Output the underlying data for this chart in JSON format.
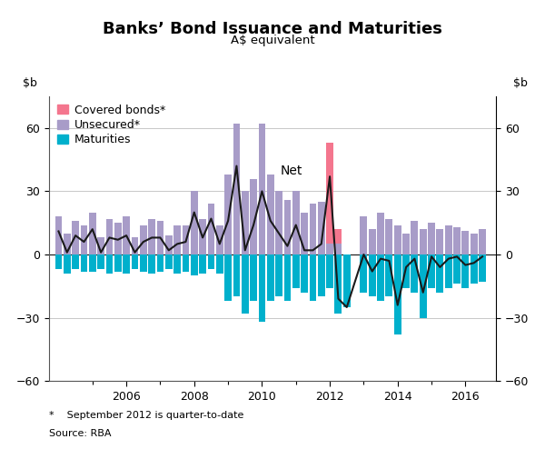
{
  "title": "Banks’ Bond Issuance and Maturities",
  "subtitle": "A$ equivalent",
  "footnote": "*    September 2012 is quarter-to-date",
  "source": "Source: RBA",
  "net_label": "Net",
  "ylim": [
    -60,
    75
  ],
  "yticks": [
    -60,
    -30,
    0,
    30,
    60
  ],
  "background_color": "#ffffff",
  "grid_color": "#c8c8c8",
  "x_values": [
    2004.0,
    2004.25,
    2004.5,
    2004.75,
    2005.0,
    2005.25,
    2005.5,
    2005.75,
    2006.0,
    2006.25,
    2006.5,
    2006.75,
    2007.0,
    2007.25,
    2007.5,
    2007.75,
    2008.0,
    2008.25,
    2008.5,
    2008.75,
    2009.0,
    2009.25,
    2009.5,
    2009.75,
    2010.0,
    2010.25,
    2010.5,
    2010.75,
    2011.0,
    2011.25,
    2011.5,
    2011.75,
    2012.0,
    2012.25,
    2012.5,
    2013.0,
    2013.25,
    2013.5,
    2013.75,
    2014.0,
    2014.25,
    2014.5,
    2014.75,
    2015.0,
    2015.25,
    2015.5,
    2015.75,
    2016.0,
    2016.25,
    2016.5
  ],
  "unsecured": [
    18,
    10,
    16,
    14,
    20,
    8,
    17,
    15,
    18,
    8,
    14,
    17,
    16,
    9,
    14,
    14,
    30,
    17,
    24,
    14,
    38,
    62,
    30,
    36,
    62,
    38,
    30,
    26,
    30,
    20,
    24,
    25,
    5,
    5,
    0,
    18,
    12,
    20,
    17,
    14,
    10,
    16,
    12,
    15,
    12,
    14,
    13,
    11,
    10,
    12
  ],
  "covered": [
    0,
    0,
    0,
    0,
    0,
    0,
    0,
    0,
    0,
    0,
    0,
    0,
    0,
    0,
    0,
    0,
    0,
    0,
    0,
    0,
    0,
    0,
    0,
    0,
    0,
    0,
    0,
    0,
    0,
    0,
    0,
    0,
    48,
    7,
    0,
    0,
    0,
    0,
    0,
    0,
    0,
    0,
    0,
    0,
    0,
    0,
    0,
    0,
    0,
    0
  ],
  "maturities": [
    -7,
    -9,
    -7,
    -8,
    -8,
    -7,
    -9,
    -8,
    -9,
    -7,
    -8,
    -9,
    -8,
    -7,
    -9,
    -8,
    -10,
    -9,
    -7,
    -9,
    -22,
    -20,
    -28,
    -22,
    -32,
    -22,
    -20,
    -22,
    -16,
    -18,
    -22,
    -20,
    -16,
    -28,
    -25,
    -18,
    -20,
    -22,
    -20,
    -38,
    -16,
    -18,
    -30,
    -16,
    -18,
    -16,
    -14,
    -16,
    -14,
    -13
  ],
  "net": [
    11,
    1,
    9,
    6,
    12,
    1,
    8,
    7,
    9,
    1,
    6,
    8,
    8,
    2,
    5,
    6,
    20,
    8,
    17,
    5,
    16,
    42,
    2,
    14,
    30,
    16,
    10,
    4,
    14,
    2,
    2,
    5,
    37,
    -21,
    -25,
    0,
    -8,
    -2,
    -3,
    -24,
    -6,
    -2,
    -18,
    -1,
    -6,
    -2,
    -1,
    -5,
    -4,
    -1
  ],
  "covered_color": "#f4768e",
  "unsecured_color": "#a89cc8",
  "maturities_color": "#00b0cc",
  "net_color": "#1a1a1a",
  "net_linewidth": 1.5,
  "bar_width": 0.21
}
